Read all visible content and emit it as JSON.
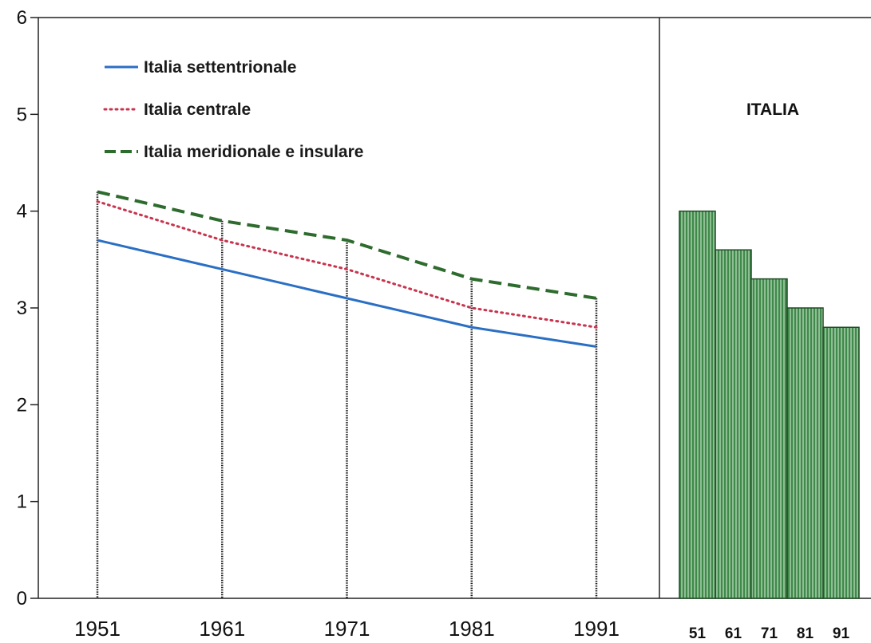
{
  "chart_data": [
    {
      "type": "line",
      "title": "",
      "xlabel": "",
      "ylabel": "",
      "x": [
        "1951",
        "1961",
        "1971",
        "1981",
        "1991"
      ],
      "ylim": [
        0,
        6
      ],
      "yticks": [
        "0",
        "1",
        "2",
        "3",
        "4",
        "5",
        "6"
      ],
      "legend_position": "top-left",
      "series": [
        {
          "name": "Italia settentrionale",
          "values": [
            3.7,
            3.4,
            3.1,
            2.8,
            2.6
          ],
          "color": "#2a6fc4",
          "style": "solid"
        },
        {
          "name": "Italia centrale",
          "values": [
            4.1,
            3.7,
            3.4,
            3.0,
            2.8
          ],
          "color": "#c8344e",
          "style": "dotted"
        },
        {
          "name": "Italia meridionale e insulare",
          "values": [
            4.2,
            3.9,
            3.7,
            3.3,
            3.1
          ],
          "color": "#2e6b2e",
          "style": "dashed"
        }
      ]
    },
    {
      "type": "bar",
      "title": "ITALIA",
      "categories": [
        "51",
        "61",
        "71",
        "81",
        "91"
      ],
      "values": [
        4.0,
        3.6,
        3.3,
        3.0,
        2.8
      ],
      "ylim": [
        0,
        6
      ],
      "color": "#3f8a4a"
    }
  ]
}
